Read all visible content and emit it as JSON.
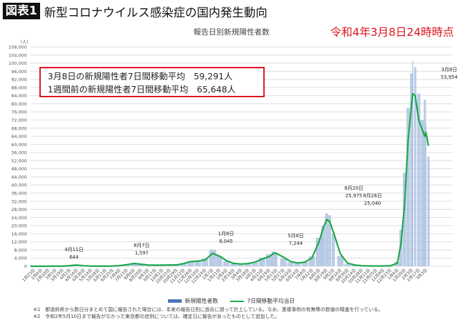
{
  "header": {
    "badge": "図表1",
    "title": "新型コロナウイルス感染症の国内発生動向"
  },
  "timestamp": "令和4年3月8日24時時点",
  "summary_box": {
    "line1": "3月8日の新規陽性者7日間移動平均　59,291人",
    "line2": "1週間前の新規陽性者7日間移動平均　65,648人"
  },
  "footnotes": [
    "※1　都道府県から数日分まとめて国に報告された場合には、本来の報告日別に過去に遡って計上している。なお、重複事例の有無等の数値の精査を行っている。",
    "※2　令和2年5月10日まで報告がなかった東京都の症例については、確定日に報告があったものとして追加した。"
  ],
  "chart_data": {
    "type": "bar+line",
    "title": "報告日別新規陽性者数",
    "ylabel": "(人)",
    "ylim": [
      0,
      108000
    ],
    "ytick_step": 4000,
    "grid": true,
    "legend_placement": "bottom",
    "colors": {
      "bars": "#a9bfe0",
      "bars_legend": "#4a76b8",
      "line": "#1aa84a",
      "grid": "#dddddd"
    },
    "x_range": [
      "2020-01-16",
      "2022-03-08"
    ],
    "x_tick_labels": [
      "1月23日",
      "2月6日",
      "2月20日",
      "3月5日",
      "3月19日",
      "4月2日",
      "4月16日",
      "4月30日",
      "5月14日",
      "5月28日",
      "6月11日",
      "6月25日",
      "7月9日",
      "7月23日",
      "8月6日",
      "8月20日",
      "9月3日",
      "9月17日",
      "10月1日",
      "10月15日",
      "10月29日",
      "11月12日",
      "11月26日",
      "12月10日",
      "12月24日",
      "1月7日",
      "1月21日",
      "2月4日",
      "2月18日",
      "3月4日",
      "3月18日",
      "4月1日",
      "4月15日",
      "4月29日",
      "5月13日",
      "5月27日",
      "6月10日",
      "6月24日",
      "7月8日",
      "7月22日",
      "8月5日",
      "8月19日",
      "9月2日",
      "9月16日",
      "9月30日",
      "10月14日",
      "10月28日",
      "11月11日",
      "11月25日",
      "12月9日",
      "12月23日",
      "1月6日",
      "1月20日",
      "2月3日",
      "2月17日",
      "3月3日"
    ],
    "x_dates": [
      "2020-01-23",
      "2020-02-06",
      "2020-02-20",
      "2020-03-05",
      "2020-03-19",
      "2020-04-02",
      "2020-04-11",
      "2020-04-16",
      "2020-04-30",
      "2020-05-14",
      "2020-05-28",
      "2020-06-11",
      "2020-06-25",
      "2020-07-09",
      "2020-07-23",
      "2020-08-07",
      "2020-08-20",
      "2020-09-03",
      "2020-09-17",
      "2020-10-01",
      "2020-10-15",
      "2020-10-29",
      "2020-11-12",
      "2020-11-26",
      "2020-12-10",
      "2020-12-24",
      "2021-01-08",
      "2021-01-21",
      "2021-02-04",
      "2021-02-18",
      "2021-03-04",
      "2021-03-18",
      "2021-04-01",
      "2021-04-15",
      "2021-04-29",
      "2021-05-08",
      "2021-05-13",
      "2021-05-27",
      "2021-06-10",
      "2021-06-24",
      "2021-07-08",
      "2021-07-22",
      "2021-08-05",
      "2021-08-13",
      "2021-08-20",
      "2021-08-26",
      "2021-09-02",
      "2021-09-16",
      "2021-09-30",
      "2021-10-14",
      "2021-10-28",
      "2021-11-11",
      "2021-11-25",
      "2021-12-09",
      "2021-12-23",
      "2022-01-06",
      "2022-01-13",
      "2022-01-20",
      "2022-01-27",
      "2022-02-03",
      "2022-02-05",
      "2022-02-10",
      "2022-02-17",
      "2022-02-24",
      "2022-03-01",
      "2022-03-03",
      "2022-03-08"
    ],
    "series": [
      {
        "name": "新規陽性者数",
        "kind": "bar",
        "values": [
          0,
          3,
          10,
          50,
          40,
          230,
          644,
          560,
          200,
          50,
          30,
          40,
          90,
          350,
          900,
          1597,
          1100,
          600,
          500,
          560,
          610,
          700,
          1400,
          2500,
          2700,
          3800,
          8045,
          5200,
          2500,
          1300,
          1100,
          1500,
          2100,
          4300,
          5900,
          7244,
          6800,
          3800,
          1900,
          1600,
          2100,
          4900,
          14000,
          20000,
          25975,
          25040,
          16000,
          5000,
          1100,
          600,
          250,
          150,
          100,
          130,
          250,
          2200,
          18000,
          46000,
          78000,
          95000,
          101000,
          98000,
          85000,
          72000,
          82000,
          70000,
          53954
        ]
      },
      {
        "name": "7日間移動平均当日",
        "kind": "line",
        "values": [
          0,
          1,
          8,
          40,
          40,
          200,
          500,
          550,
          250,
          60,
          35,
          40,
          80,
          300,
          750,
          1350,
          1000,
          600,
          500,
          550,
          600,
          650,
          1300,
          2300,
          2500,
          3100,
          6300,
          5000,
          2800,
          1400,
          1100,
          1300,
          2000,
          3500,
          4700,
          6400,
          6300,
          4500,
          2300,
          1600,
          2000,
          4000,
          12000,
          18500,
          23000,
          22000,
          17000,
          6000,
          1500,
          600,
          250,
          150,
          100,
          130,
          200,
          1500,
          11000,
          30000,
          62000,
          80000,
          85000,
          84000,
          72000,
          67000,
          64000,
          66000,
          59291
        ]
      }
    ],
    "annotations": [
      {
        "date": "4月11日",
        "value": "644"
      },
      {
        "date": "8月7日",
        "value": "1,597"
      },
      {
        "date": "1月8日",
        "value": "8,045"
      },
      {
        "date": "5月8日",
        "value": "7,244"
      },
      {
        "date": "8月20日",
        "value": "25,975"
      },
      {
        "date": "8月26日",
        "value": "25,040"
      },
      {
        "date": "3月8日",
        "value": "53,954"
      }
    ]
  }
}
